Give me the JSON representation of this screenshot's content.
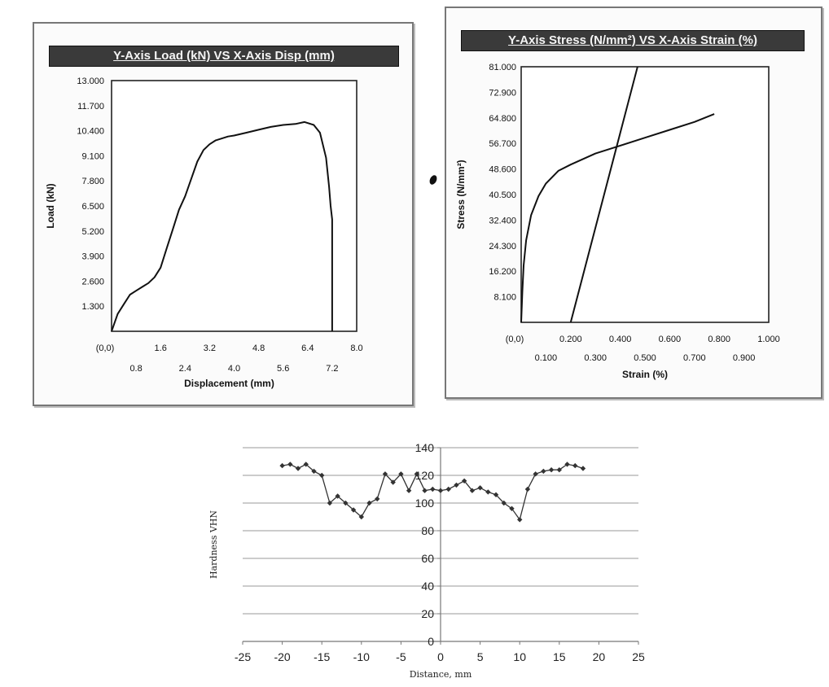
{
  "charts": {
    "load_disp": {
      "title": "Y-Axis Load (kN) VS X-Axis Disp (mm)"
    },
    "stress_strain": {
      "title": "Y-Axis Stress (N/mm²) VS X-Axis Strain (%)"
    },
    "hardness": {}
  },
  "chart_data": [
    {
      "type": "line",
      "title": "Y-Axis Load (kN) VS X-Axis Disp (mm)",
      "xlabel": "Displacement (mm)",
      "ylabel": "Load (kN)",
      "xlim": [
        0,
        8.0
      ],
      "ylim": [
        0,
        13.0
      ],
      "x_ticks_upper": [
        "(0,0)",
        "1.6",
        "3.2",
        "4.8",
        "6.4",
        "8.0"
      ],
      "x_ticks_lower": [
        "0.8",
        "2.4",
        "4.0",
        "5.6",
        "7.2"
      ],
      "y_ticks": [
        "13.000",
        "11.700",
        "10.400",
        "9.100",
        "7.800",
        "6.500",
        "5.200",
        "3.900",
        "2.600",
        "1.300"
      ],
      "grid": false,
      "series": [
        {
          "x": [
            0,
            0.2,
            0.4,
            0.6,
            0.8,
            1.0,
            1.2,
            1.4,
            1.6,
            1.8,
            2.0,
            2.2,
            2.4,
            2.6,
            2.8,
            3.0,
            3.2,
            3.4,
            3.6,
            3.8,
            4.0,
            4.4,
            4.8,
            5.2,
            5.6,
            6.0,
            6.3,
            6.6,
            6.8,
            7.0,
            7.1,
            7.15,
            7.2,
            7.2
          ],
          "y": [
            0,
            0.9,
            1.4,
            1.9,
            2.1,
            2.3,
            2.5,
            2.8,
            3.3,
            4.3,
            5.3,
            6.3,
            7.0,
            7.9,
            8.8,
            9.4,
            9.7,
            9.9,
            10.0,
            10.1,
            10.15,
            10.3,
            10.45,
            10.6,
            10.7,
            10.75,
            10.85,
            10.7,
            10.3,
            9.0,
            7.5,
            6.5,
            5.8,
            0
          ]
        }
      ]
    },
    {
      "type": "line",
      "title": "Y-Axis Stress (N/mm²) VS X-Axis Strain (%)",
      "xlabel": "Strain (%)",
      "ylabel": "Stress (N/mm²)",
      "xlim": [
        0,
        1.0
      ],
      "ylim": [
        0,
        81.0
      ],
      "x_ticks_upper": [
        "(0,0)",
        "0.200",
        "0.400",
        "0.600",
        "0.800",
        "1.000"
      ],
      "x_ticks_lower": [
        "0.100",
        "0.300",
        "0.500",
        "0.700",
        "0.900"
      ],
      "y_ticks": [
        "81.000",
        "72.900",
        "64.800",
        "56.700",
        "48.600",
        "40.500",
        "32.400",
        "24.300",
        "16.200",
        "8.100"
      ],
      "grid": false,
      "series": [
        {
          "x": [
            0,
            0.005,
            0.01,
            0.02,
            0.04,
            0.07,
            0.1,
            0.15,
            0.2,
            0.3,
            0.4,
            0.5,
            0.6,
            0.7,
            0.78
          ],
          "y": [
            0,
            10,
            18,
            26,
            34,
            40,
            44,
            48,
            50,
            53.5,
            56,
            58.5,
            61,
            63.5,
            66
          ]
        },
        {
          "x": [
            0.2,
            0.47
          ],
          "y": [
            0,
            81
          ]
        }
      ]
    },
    {
      "type": "line",
      "xlabel": "Distance, mm",
      "ylabel": "Hardness VHN",
      "xlim": [
        -25,
        25
      ],
      "ylim": [
        0,
        140
      ],
      "x_ticks": [
        "-25",
        "-20",
        "-15",
        "-10",
        "-5",
        "0",
        "5",
        "10",
        "15",
        "20",
        "25"
      ],
      "y_ticks": [
        "0",
        "20",
        "40",
        "60",
        "80",
        "100",
        "120",
        "140"
      ],
      "grid": true,
      "series": [
        {
          "x": [
            -20,
            -19,
            -18,
            -17,
            -16,
            -15,
            -14,
            -13,
            -12,
            -11,
            -10,
            -9,
            -8,
            -7,
            -6,
            -5,
            -4,
            -3,
            -2,
            -1,
            0,
            1,
            2,
            3,
            4,
            5,
            6,
            7,
            8,
            9,
            10,
            11,
            12,
            13,
            14,
            15,
            16,
            17,
            18
          ],
          "y": [
            127,
            128,
            125,
            128,
            123,
            120,
            100,
            105,
            100,
            95,
            90,
            100,
            103,
            121,
            115,
            121,
            109,
            121,
            109,
            110,
            109,
            110,
            113,
            116,
            109,
            111,
            108,
            106,
            100,
            96,
            88,
            110,
            121,
            123,
            124,
            124,
            128,
            127,
            125
          ]
        }
      ]
    }
  ]
}
